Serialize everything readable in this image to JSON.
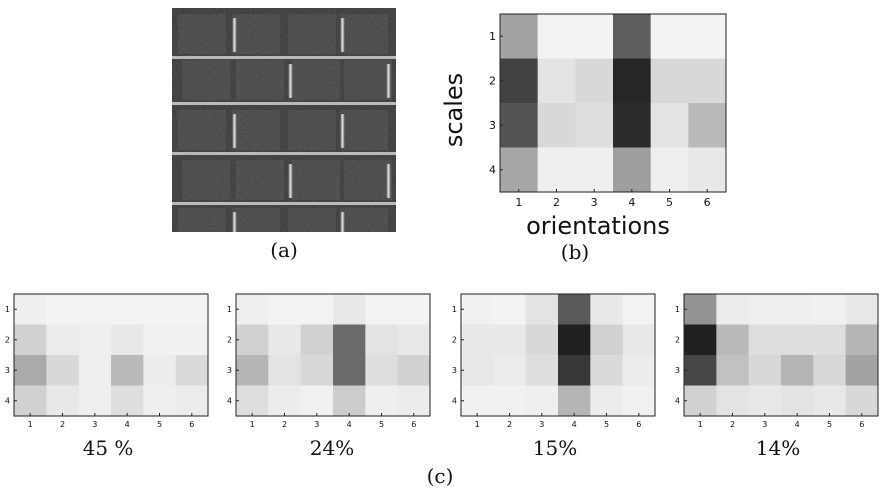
{
  "panel_a": {
    "caption": "(a)"
  },
  "panel_b": {
    "caption": "(b)",
    "ylabel": "scales",
    "xlabel": "orientations"
  },
  "panel_c": {
    "caption": "(c)",
    "percentages": [
      "45 %",
      "24%",
      "15%",
      "14%"
    ]
  },
  "chart_data": [
    {
      "type": "heatmap",
      "id": "b",
      "xlabel": "orientations",
      "ylabel": "scales",
      "x": [
        1,
        2,
        3,
        4,
        5,
        6
      ],
      "y": [
        1,
        2,
        3,
        4
      ],
      "values": [
        [
          0.38,
          0.03,
          0.03,
          0.68,
          0.03,
          0.03
        ],
        [
          0.8,
          0.1,
          0.15,
          0.92,
          0.15,
          0.15
        ],
        [
          0.72,
          0.15,
          0.12,
          0.9,
          0.1,
          0.28
        ],
        [
          0.36,
          0.05,
          0.05,
          0.4,
          0.05,
          0.08
        ]
      ]
    },
    {
      "type": "heatmap",
      "id": "c1",
      "label": "45 %",
      "x": [
        1,
        2,
        3,
        4,
        5,
        6
      ],
      "y": [
        1,
        2,
        3,
        4
      ],
      "values": [
        [
          0.05,
          0.03,
          0.03,
          0.03,
          0.03,
          0.03
        ],
        [
          0.18,
          0.06,
          0.05,
          0.08,
          0.04,
          0.04
        ],
        [
          0.35,
          0.15,
          0.05,
          0.28,
          0.06,
          0.14
        ],
        [
          0.18,
          0.08,
          0.05,
          0.12,
          0.05,
          0.06
        ]
      ]
    },
    {
      "type": "heatmap",
      "id": "c2",
      "label": "24%",
      "x": [
        1,
        2,
        3,
        4,
        5,
        6
      ],
      "y": [
        1,
        2,
        3,
        4
      ],
      "values": [
        [
          0.05,
          0.03,
          0.03,
          0.08,
          0.03,
          0.03
        ],
        [
          0.18,
          0.08,
          0.18,
          0.62,
          0.1,
          0.08
        ],
        [
          0.3,
          0.1,
          0.15,
          0.62,
          0.12,
          0.18
        ],
        [
          0.12,
          0.06,
          0.04,
          0.2,
          0.05,
          0.06
        ]
      ]
    },
    {
      "type": "heatmap",
      "id": "c3",
      "label": "15%",
      "x": [
        1,
        2,
        3,
        4,
        5,
        6
      ],
      "y": [
        1,
        2,
        3,
        4
      ],
      "values": [
        [
          0.04,
          0.03,
          0.1,
          0.7,
          0.08,
          0.03
        ],
        [
          0.08,
          0.08,
          0.15,
          0.95,
          0.18,
          0.08
        ],
        [
          0.08,
          0.06,
          0.12,
          0.85,
          0.14,
          0.06
        ],
        [
          0.04,
          0.04,
          0.05,
          0.3,
          0.06,
          0.04
        ]
      ]
    },
    {
      "type": "heatmap",
      "id": "c4",
      "label": "14%",
      "x": [
        1,
        2,
        3,
        4,
        5,
        6
      ],
      "y": [
        1,
        2,
        3,
        4
      ],
      "values": [
        [
          0.45,
          0.06,
          0.05,
          0.05,
          0.04,
          0.08
        ],
        [
          0.95,
          0.28,
          0.12,
          0.12,
          0.12,
          0.3
        ],
        [
          0.78,
          0.25,
          0.15,
          0.3,
          0.15,
          0.38
        ],
        [
          0.18,
          0.1,
          0.08,
          0.1,
          0.08,
          0.15
        ]
      ]
    }
  ]
}
